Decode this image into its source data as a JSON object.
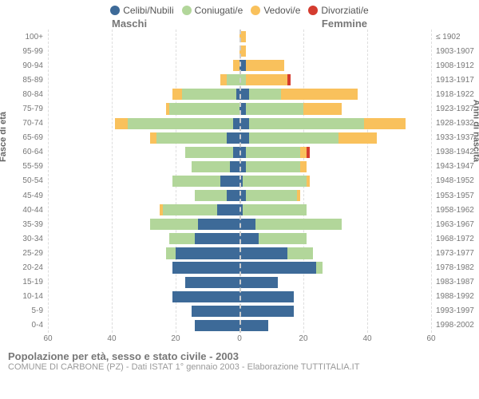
{
  "legend": [
    {
      "label": "Celibi/Nubili",
      "color": "#3d6a98"
    },
    {
      "label": "Coniugati/e",
      "color": "#b2d69a"
    },
    {
      "label": "Vedovi/e",
      "color": "#f9c15c"
    },
    {
      "label": "Divorziati/e",
      "color": "#d43c2f"
    }
  ],
  "side_labels": {
    "left": "Maschi",
    "right": "Femmine"
  },
  "y_title_left": "Fasce di età",
  "y_title_right": "Anni di nascita",
  "title": "Popolazione per età, sesso e stato civile - 2003",
  "subtitle": "COMUNE DI CARBONE (PZ) - Dati ISTAT 1° gennaio 2003 - Elaborazione TUTTITALIA.IT",
  "x_max": 60,
  "x_ticks": [
    60,
    40,
    20,
    0,
    20,
    40,
    60
  ],
  "colors": {
    "celibi": "#3d6a98",
    "coniugati": "#b2d69a",
    "vedovi": "#f9c15c",
    "divorziati": "#d43c2f",
    "grid": "#dddddd",
    "center": "#cccccc",
    "bg": "#ffffff"
  },
  "rows": [
    {
      "age": "100+",
      "birth": "≤ 1902",
      "m": [
        0,
        0,
        0,
        0
      ],
      "f": [
        0,
        0,
        2,
        0
      ]
    },
    {
      "age": "95-99",
      "birth": "1903-1907",
      "m": [
        0,
        0,
        0,
        0
      ],
      "f": [
        0,
        0,
        2,
        0
      ]
    },
    {
      "age": "90-94",
      "birth": "1908-1912",
      "m": [
        0,
        0,
        2,
        0
      ],
      "f": [
        2,
        0,
        12,
        0
      ]
    },
    {
      "age": "85-89",
      "birth": "1913-1917",
      "m": [
        0,
        4,
        2,
        0
      ],
      "f": [
        0,
        2,
        13,
        1
      ]
    },
    {
      "age": "80-84",
      "birth": "1918-1922",
      "m": [
        1,
        17,
        3,
        0
      ],
      "f": [
        3,
        10,
        24,
        0
      ]
    },
    {
      "age": "75-79",
      "birth": "1923-1927",
      "m": [
        0,
        22,
        1,
        0
      ],
      "f": [
        2,
        18,
        12,
        0
      ]
    },
    {
      "age": "70-74",
      "birth": "1928-1932",
      "m": [
        2,
        33,
        4,
        0
      ],
      "f": [
        3,
        36,
        13,
        0
      ]
    },
    {
      "age": "65-69",
      "birth": "1933-1937",
      "m": [
        4,
        22,
        2,
        0
      ],
      "f": [
        3,
        28,
        12,
        0
      ]
    },
    {
      "age": "60-64",
      "birth": "1938-1942",
      "m": [
        2,
        15,
        0,
        0
      ],
      "f": [
        2,
        17,
        2,
        1
      ]
    },
    {
      "age": "55-59",
      "birth": "1943-1947",
      "m": [
        3,
        12,
        0,
        0
      ],
      "f": [
        2,
        17,
        2,
        0
      ]
    },
    {
      "age": "50-54",
      "birth": "1948-1952",
      "m": [
        6,
        15,
        0,
        0
      ],
      "f": [
        1,
        20,
        1,
        0
      ]
    },
    {
      "age": "45-49",
      "birth": "1953-1957",
      "m": [
        4,
        10,
        0,
        0
      ],
      "f": [
        2,
        16,
        1,
        0
      ]
    },
    {
      "age": "40-44",
      "birth": "1958-1962",
      "m": [
        7,
        17,
        1,
        0
      ],
      "f": [
        1,
        20,
        0,
        0
      ]
    },
    {
      "age": "35-39",
      "birth": "1963-1967",
      "m": [
        13,
        15,
        0,
        0
      ],
      "f": [
        5,
        27,
        0,
        0
      ]
    },
    {
      "age": "30-34",
      "birth": "1968-1972",
      "m": [
        14,
        8,
        0,
        0
      ],
      "f": [
        6,
        15,
        0,
        0
      ]
    },
    {
      "age": "25-29",
      "birth": "1973-1977",
      "m": [
        20,
        3,
        0,
        0
      ],
      "f": [
        15,
        8,
        0,
        0
      ]
    },
    {
      "age": "20-24",
      "birth": "1978-1982",
      "m": [
        21,
        0,
        0,
        0
      ],
      "f": [
        24,
        2,
        0,
        0
      ]
    },
    {
      "age": "15-19",
      "birth": "1983-1987",
      "m": [
        17,
        0,
        0,
        0
      ],
      "f": [
        12,
        0,
        0,
        0
      ]
    },
    {
      "age": "10-14",
      "birth": "1988-1992",
      "m": [
        21,
        0,
        0,
        0
      ],
      "f": [
        17,
        0,
        0,
        0
      ]
    },
    {
      "age": "5-9",
      "birth": "1993-1997",
      "m": [
        15,
        0,
        0,
        0
      ],
      "f": [
        17,
        0,
        0,
        0
      ]
    },
    {
      "age": "0-4",
      "birth": "1998-2002",
      "m": [
        14,
        0,
        0,
        0
      ],
      "f": [
        9,
        0,
        0,
        0
      ]
    }
  ]
}
